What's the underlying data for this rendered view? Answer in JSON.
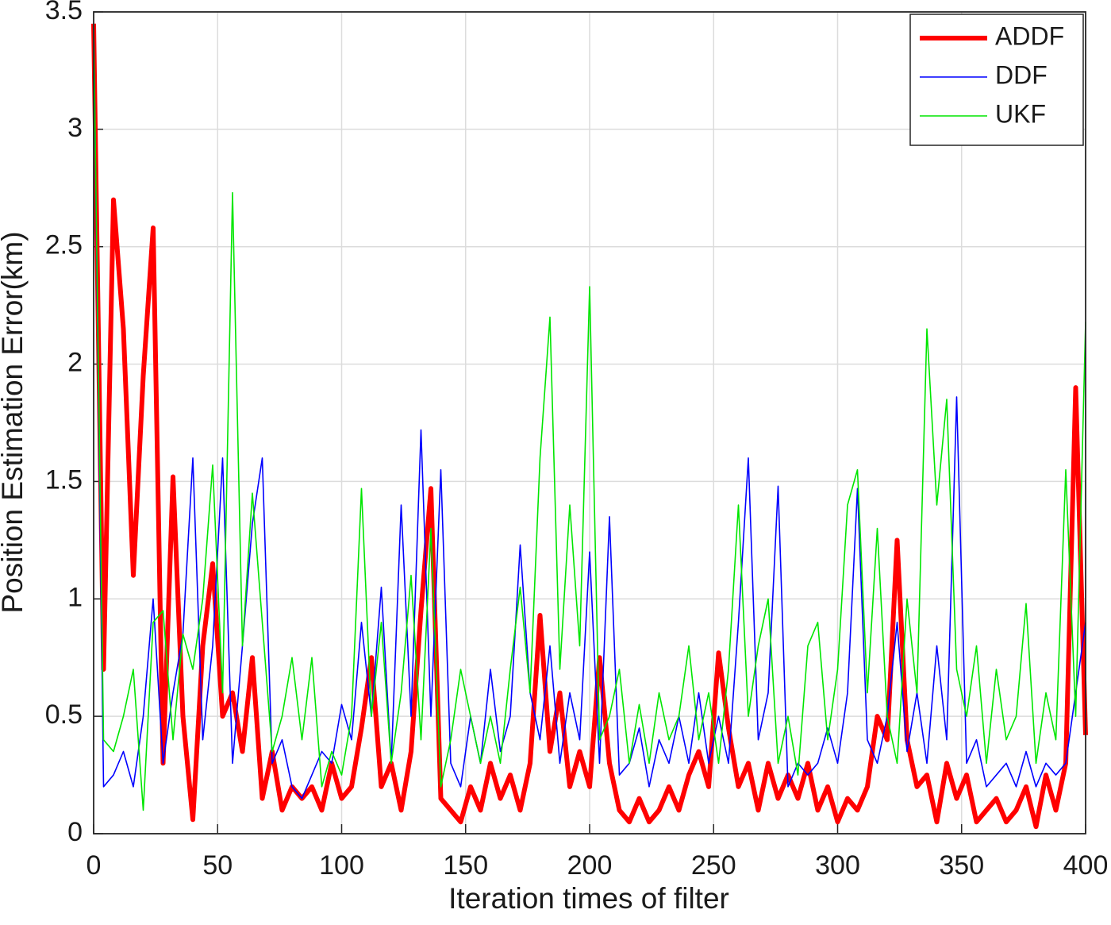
{
  "chart_data": {
    "type": "line",
    "xlabel": "Iteration times of filter",
    "ylabel": "Position Estimation Error(km)",
    "xlim": [
      0,
      400
    ],
    "ylim": [
      0,
      3.5
    ],
    "xticks": [
      0,
      50,
      100,
      150,
      200,
      250,
      300,
      350,
      400
    ],
    "yticks": [
      0,
      0.5,
      1,
      1.5,
      2,
      2.5,
      3,
      3.5
    ],
    "grid": true,
    "legend": "upper right",
    "x": [
      0,
      4,
      8,
      12,
      16,
      20,
      24,
      28,
      32,
      36,
      40,
      44,
      48,
      52,
      56,
      60,
      64,
      68,
      72,
      76,
      80,
      84,
      88,
      92,
      96,
      100,
      104,
      108,
      112,
      116,
      120,
      124,
      128,
      132,
      136,
      140,
      144,
      148,
      152,
      156,
      160,
      164,
      168,
      172,
      176,
      180,
      184,
      188,
      192,
      196,
      200,
      204,
      208,
      212,
      216,
      220,
      224,
      228,
      232,
      236,
      240,
      244,
      248,
      252,
      256,
      260,
      264,
      268,
      272,
      276,
      280,
      284,
      288,
      292,
      296,
      300,
      304,
      308,
      312,
      316,
      320,
      324,
      328,
      332,
      336,
      340,
      344,
      348,
      352,
      356,
      360,
      364,
      368,
      372,
      376,
      380,
      384,
      388,
      392,
      396,
      400
    ],
    "series": [
      {
        "name": "ADDF",
        "color": "#ff0000",
        "values": [
          3.45,
          0.7,
          2.7,
          2.15,
          1.1,
          1.95,
          2.58,
          0.3,
          1.52,
          0.5,
          0.06,
          0.8,
          1.15,
          0.5,
          0.6,
          0.35,
          0.75,
          0.15,
          0.35,
          0.1,
          0.2,
          0.15,
          0.2,
          0.1,
          0.3,
          0.15,
          0.2,
          0.45,
          0.75,
          0.2,
          0.3,
          0.1,
          0.35,
          0.95,
          1.47,
          0.15,
          0.1,
          0.05,
          0.2,
          0.1,
          0.3,
          0.15,
          0.25,
          0.1,
          0.3,
          0.93,
          0.35,
          0.6,
          0.2,
          0.35,
          0.2,
          0.75,
          0.3,
          0.1,
          0.05,
          0.15,
          0.05,
          0.1,
          0.2,
          0.1,
          0.25,
          0.35,
          0.2,
          0.77,
          0.45,
          0.2,
          0.3,
          0.1,
          0.3,
          0.15,
          0.25,
          0.15,
          0.3,
          0.1,
          0.2,
          0.05,
          0.15,
          0.1,
          0.2,
          0.5,
          0.4,
          1.25,
          0.4,
          0.2,
          0.25,
          0.05,
          0.3,
          0.15,
          0.25,
          0.05,
          0.1,
          0.15,
          0.05,
          0.1,
          0.2,
          0.03,
          0.25,
          0.1,
          0.3,
          1.9,
          0.42
        ]
      },
      {
        "name": "DDF",
        "color": "#0000ff",
        "values": [
          3.45,
          0.2,
          0.25,
          0.35,
          0.2,
          0.5,
          1.0,
          0.3,
          0.6,
          0.85,
          1.6,
          0.4,
          0.8,
          1.6,
          0.3,
          0.8,
          1.32,
          1.6,
          0.3,
          0.4,
          0.2,
          0.15,
          0.25,
          0.35,
          0.3,
          0.55,
          0.4,
          0.9,
          0.5,
          1.05,
          0.3,
          1.4,
          0.5,
          1.72,
          0.5,
          1.55,
          0.3,
          0.2,
          0.5,
          0.3,
          0.7,
          0.35,
          0.5,
          1.23,
          0.6,
          0.4,
          0.8,
          0.3,
          0.6,
          0.4,
          1.2,
          0.3,
          1.35,
          0.25,
          0.3,
          0.45,
          0.2,
          0.4,
          0.3,
          0.5,
          0.3,
          0.6,
          0.3,
          0.5,
          0.3,
          0.9,
          1.6,
          0.4,
          0.6,
          1.48,
          0.2,
          0.3,
          0.25,
          0.3,
          0.45,
          0.3,
          0.6,
          1.47,
          0.4,
          0.3,
          0.5,
          0.9,
          0.35,
          0.6,
          0.3,
          0.8,
          0.4,
          1.86,
          0.3,
          0.4,
          0.2,
          0.25,
          0.3,
          0.2,
          0.35,
          0.2,
          0.3,
          0.25,
          0.3,
          0.6,
          0.9
        ]
      },
      {
        "name": "UKF",
        "color": "#00e600",
        "values": [
          3.45,
          0.4,
          0.35,
          0.5,
          0.7,
          0.1,
          0.9,
          0.95,
          0.4,
          0.85,
          0.7,
          1.0,
          1.57,
          0.6,
          2.73,
          0.8,
          1.45,
          0.9,
          0.35,
          0.5,
          0.75,
          0.4,
          0.75,
          0.2,
          0.35,
          0.25,
          0.5,
          1.47,
          0.5,
          0.9,
          0.3,
          0.6,
          1.1,
          0.4,
          1.3,
          0.2,
          0.4,
          0.7,
          0.5,
          0.3,
          0.5,
          0.3,
          0.7,
          1.05,
          0.6,
          1.6,
          2.2,
          0.7,
          1.4,
          0.8,
          2.33,
          0.4,
          0.5,
          0.7,
          0.3,
          0.55,
          0.3,
          0.6,
          0.4,
          0.5,
          0.8,
          0.4,
          0.6,
          0.3,
          0.7,
          1.4,
          0.5,
          0.8,
          1.0,
          0.3,
          0.5,
          0.25,
          0.8,
          0.9,
          0.4,
          0.7,
          1.4,
          1.55,
          0.6,
          1.3,
          0.5,
          0.3,
          1.0,
          0.6,
          2.15,
          1.4,
          1.85,
          0.7,
          0.5,
          0.8,
          0.3,
          0.7,
          0.4,
          0.5,
          0.98,
          0.3,
          0.6,
          0.4,
          1.55,
          0.5,
          2.18
        ]
      }
    ]
  }
}
